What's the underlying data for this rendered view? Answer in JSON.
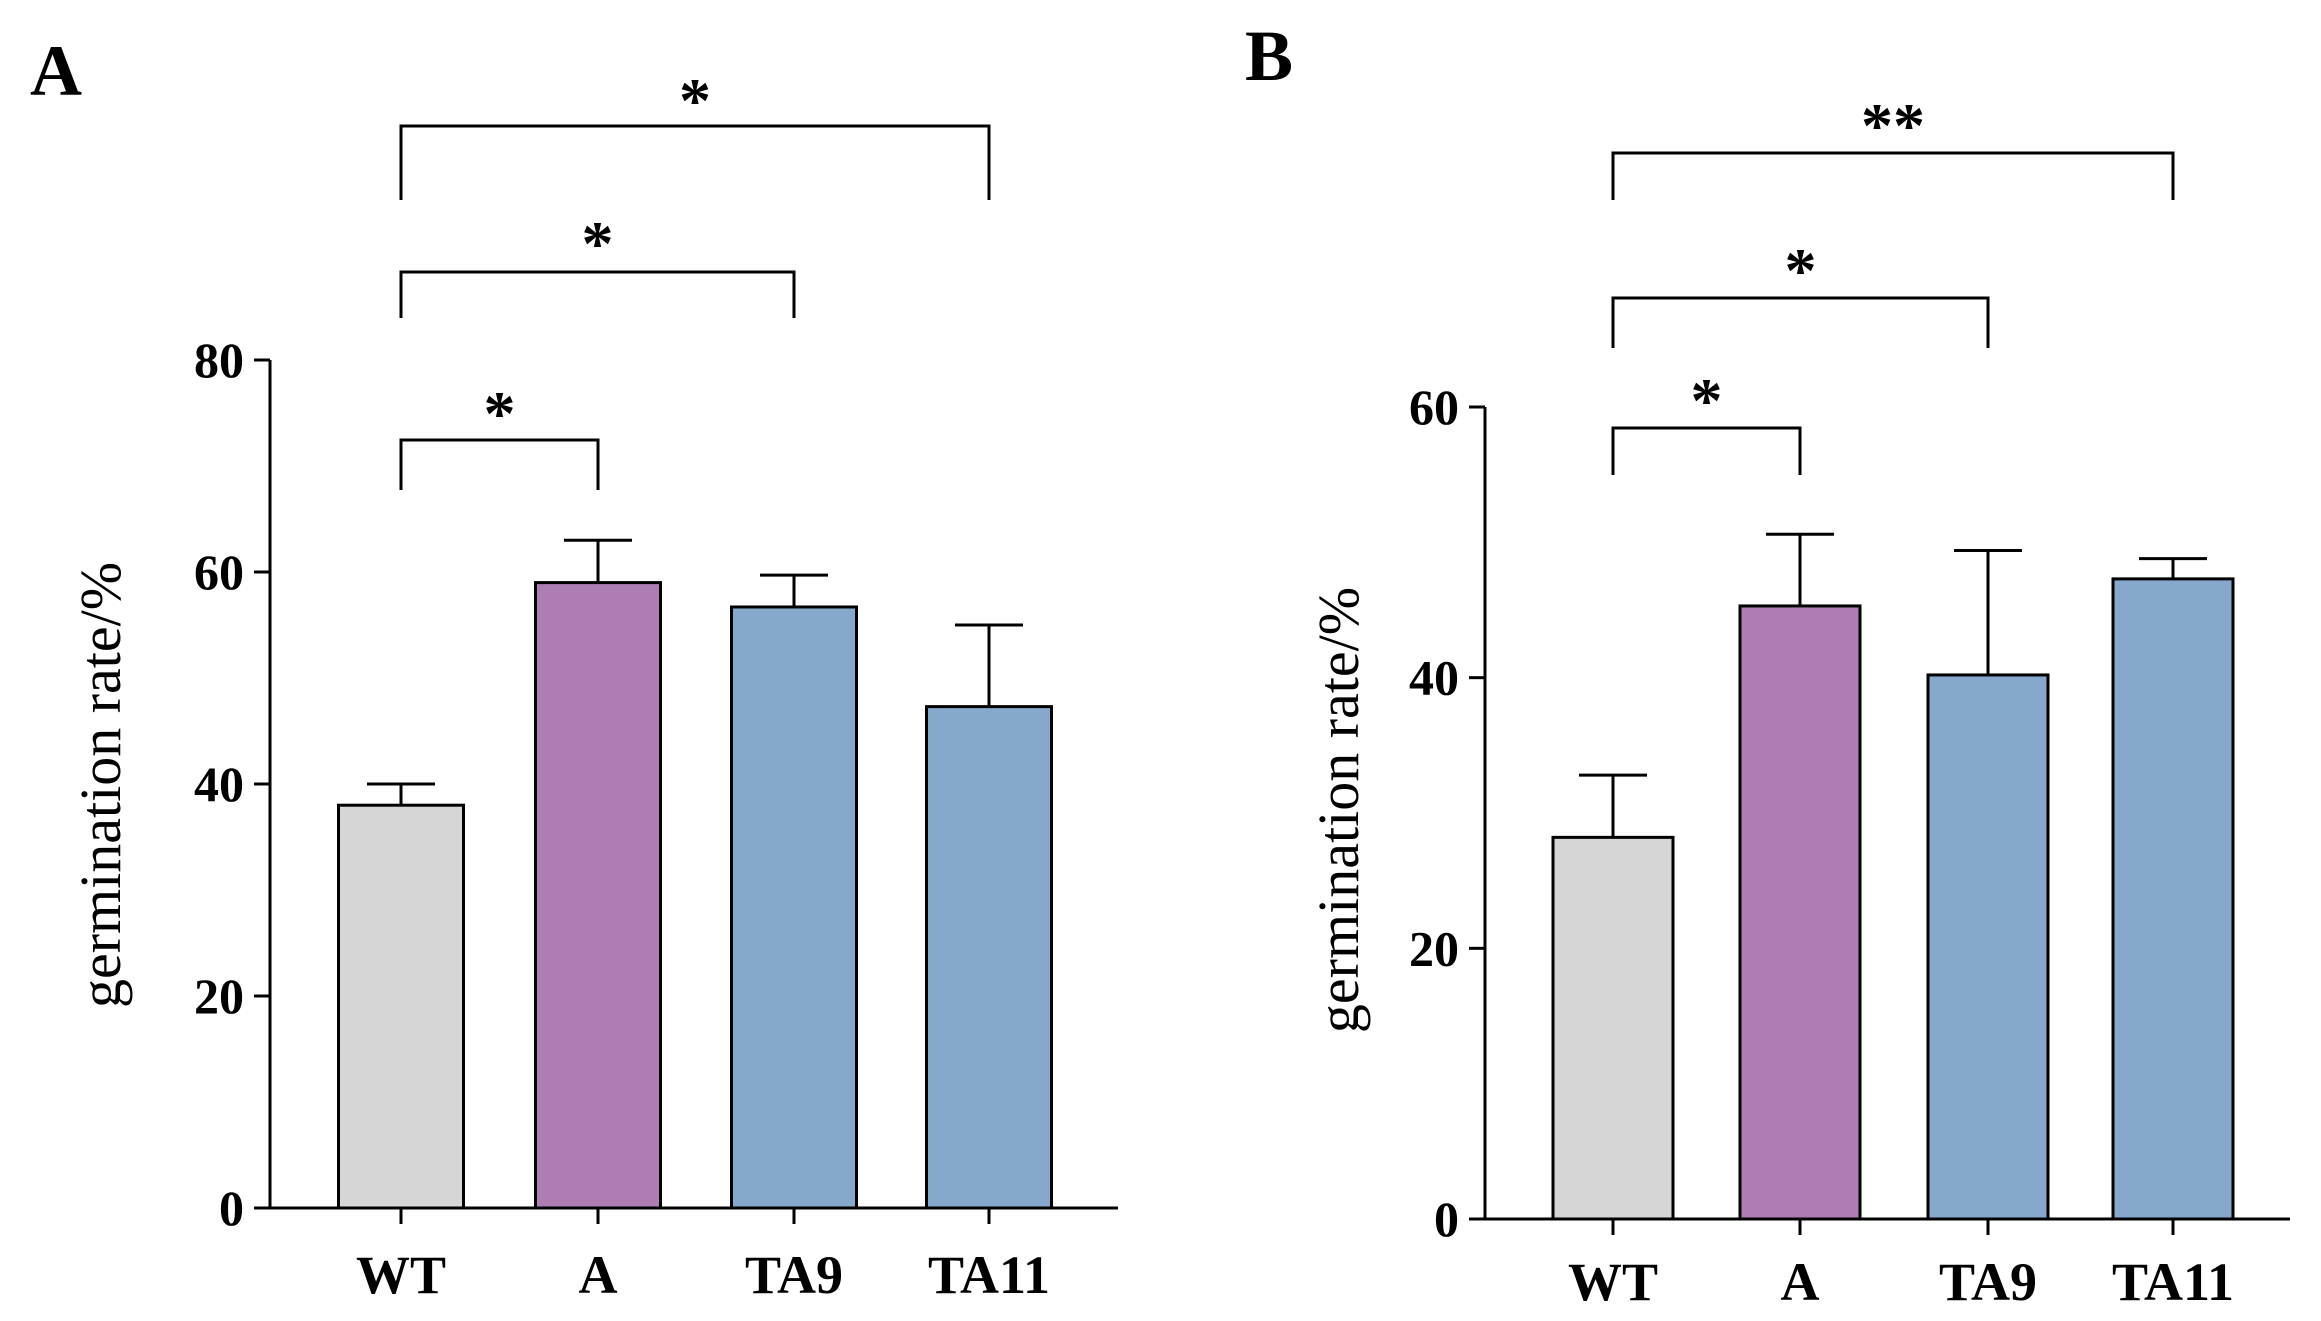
{
  "chart_data": [
    {
      "panel": "A",
      "type": "bar",
      "categories": [
        "WT",
        "A",
        "TA9",
        "TA11"
      ],
      "values": [
        38,
        59,
        56.7,
        47.3
      ],
      "errors": [
        2,
        4,
        3,
        7.7
      ],
      "colors": [
        "#d6d6d6",
        "#ad7db4",
        "#86a8cc",
        "#86a8cc"
      ],
      "ylabel": "germination rate/%",
      "xlabel": "",
      "ylim": [
        0,
        80
      ],
      "yticks": [
        0,
        20,
        40,
        60,
        80
      ],
      "grid": false,
      "significance": [
        {
          "from": "WT",
          "to": "A",
          "label": "*"
        },
        {
          "from": "WT",
          "to": "TA9",
          "label": "*"
        },
        {
          "from": "WT",
          "to": "TA11",
          "label": "*"
        }
      ]
    },
    {
      "panel": "B",
      "type": "bar",
      "categories": [
        "WT",
        "A",
        "TA9",
        "TA11"
      ],
      "values": [
        28.2,
        45.3,
        40.2,
        47.3
      ],
      "errors": [
        4.6,
        5.3,
        9.2,
        1.5
      ],
      "colors": [
        "#d6d6d6",
        "#ad7db4",
        "#86a8cc",
        "#86a8cc"
      ],
      "ylabel": "germination rate/%",
      "xlabel": "",
      "ylim": [
        0,
        60
      ],
      "yticks": [
        0,
        20,
        40,
        60
      ],
      "grid": false,
      "significance": [
        {
          "from": "WT",
          "to": "A",
          "label": "*"
        },
        {
          "from": "WT",
          "to": "TA9",
          "label": "*"
        },
        {
          "from": "WT",
          "to": "TA11",
          "label": "**"
        }
      ]
    }
  ]
}
